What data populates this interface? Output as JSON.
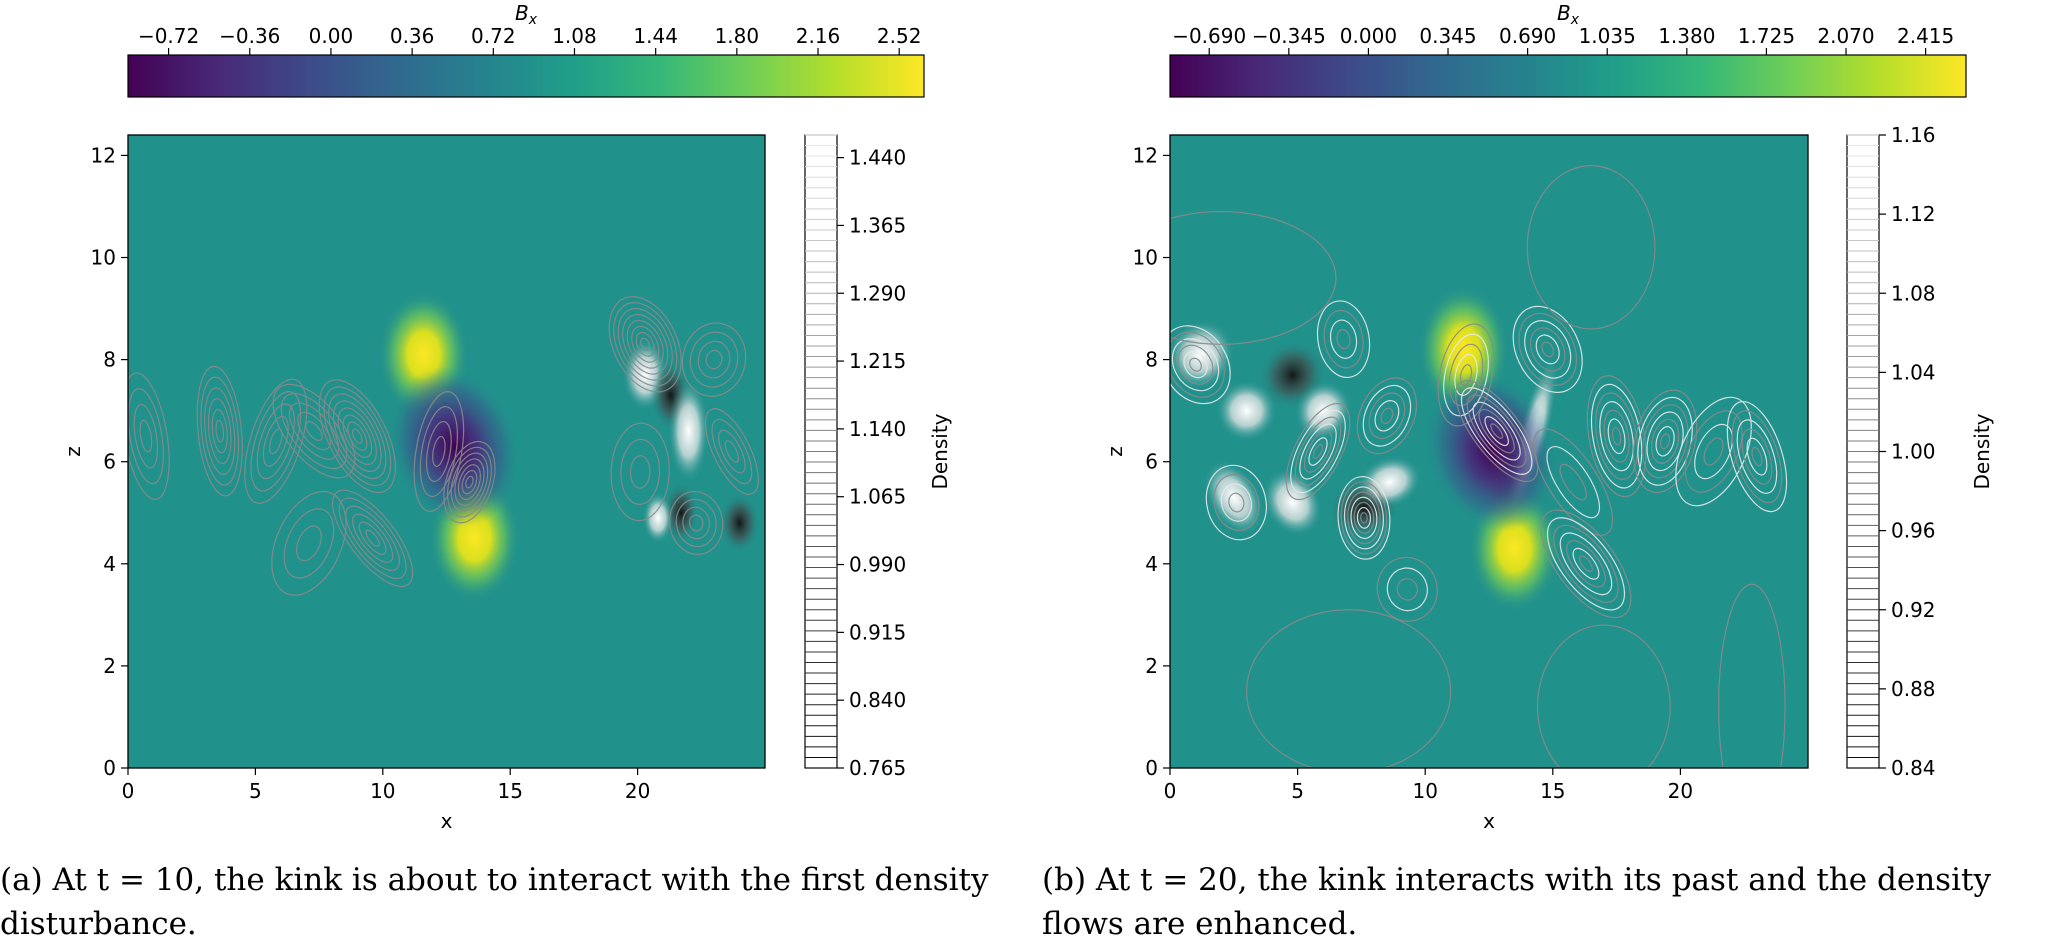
{
  "chart_data": [
    {
      "type": "heatmap",
      "panel_label": "(a)",
      "xlabel": "x",
      "ylabel": "z",
      "xlim": [
        0,
        25
      ],
      "ylim": [
        0,
        12.4
      ],
      "x_ticks": [
        0,
        5,
        10,
        15,
        20
      ],
      "y_ticks": [
        0,
        2,
        4,
        6,
        8,
        10,
        12
      ],
      "colorbar_top": {
        "label": "B_x",
        "label_display": "Bx",
        "range": [
          -0.9,
          2.63
        ],
        "ticks": [
          "−0.72",
          "−0.36",
          "0.00",
          "0.36",
          "0.72",
          "1.08",
          "1.44",
          "1.80",
          "2.16",
          "2.52"
        ],
        "tick_values": [
          -0.72,
          -0.36,
          0.0,
          0.36,
          0.72,
          1.08,
          1.44,
          1.8,
          2.16,
          2.52
        ]
      },
      "colorbar_side": {
        "label": "Density",
        "range": [
          0.765,
          1.465
        ],
        "ticks": [
          "1.440",
          "1.365",
          "1.290",
          "1.215",
          "1.140",
          "1.065",
          "0.990",
          "0.915",
          "0.840",
          "0.765"
        ],
        "tick_values": [
          1.44,
          1.365,
          1.29,
          1.215,
          1.14,
          1.065,
          0.99,
          0.915,
          0.84,
          0.765
        ]
      },
      "features": [
        {
          "kind": "bx_high",
          "x": 11.6,
          "z": 8.1,
          "value": 2.52
        },
        {
          "kind": "bx_high",
          "x": 13.6,
          "z": 4.5,
          "value": 2.52
        },
        {
          "kind": "bx_low",
          "x": 12.8,
          "z": 6.3,
          "value": -0.72
        },
        {
          "kind": "density_high",
          "x": 22.0,
          "z": 6.6,
          "value": 1.44
        },
        {
          "kind": "density_low",
          "x": 21.3,
          "z": 7.3,
          "value": 0.84
        }
      ]
    },
    {
      "type": "heatmap",
      "panel_label": "(b)",
      "xlabel": "x",
      "ylabel": "z",
      "xlim": [
        0,
        25
      ],
      "ylim": [
        0,
        12.4
      ],
      "x_ticks": [
        0,
        5,
        10,
        15,
        20
      ],
      "y_ticks": [
        0,
        2,
        4,
        6,
        8,
        10,
        12
      ],
      "colorbar_top": {
        "label": "B_x",
        "label_display": "Bx",
        "range": [
          -0.86,
          2.59
        ],
        "ticks": [
          "−0.690",
          "−0.345",
          "0.000",
          "0.345",
          "0.690",
          "1.035",
          "1.380",
          "1.725",
          "2.070",
          "2.415"
        ],
        "tick_values": [
          -0.69,
          -0.345,
          0.0,
          0.345,
          0.69,
          1.035,
          1.38,
          1.725,
          2.07,
          2.415
        ]
      },
      "colorbar_side": {
        "label": "Density",
        "range": [
          0.84,
          1.16
        ],
        "ticks": [
          "1.16",
          "1.12",
          "1.08",
          "1.04",
          "1.00",
          "0.96",
          "0.92",
          "0.88",
          "0.84"
        ],
        "tick_values": [
          1.16,
          1.12,
          1.08,
          1.04,
          1.0,
          0.96,
          0.92,
          0.88,
          0.84
        ]
      },
      "features": [
        {
          "kind": "bx_high",
          "x": 11.5,
          "z": 8.2,
          "value": 2.415
        },
        {
          "kind": "bx_high",
          "x": 13.5,
          "z": 4.3,
          "value": 2.415
        },
        {
          "kind": "bx_low",
          "x": 12.6,
          "z": 6.2,
          "value": -0.69
        },
        {
          "kind": "density_low",
          "x": 4.8,
          "z": 7.7,
          "value": 0.88
        },
        {
          "kind": "density_low",
          "x": 7.6,
          "z": 5.1,
          "value": 0.88
        },
        {
          "kind": "density_high",
          "x": 2.5,
          "z": 5.3,
          "value": 1.12
        },
        {
          "kind": "density_high",
          "x": 6.0,
          "z": 7.0,
          "value": 1.12
        }
      ]
    }
  ],
  "captions": {
    "a": "(a) At t = 10, the kink is about to interact with the first density disturbance.",
    "b": "(b) At t = 20, the kink interacts with its past and the density flows are enhanced."
  },
  "colors": {
    "background_field": "#21918c",
    "contour": "#8a8a8a",
    "axis": "#000000"
  }
}
